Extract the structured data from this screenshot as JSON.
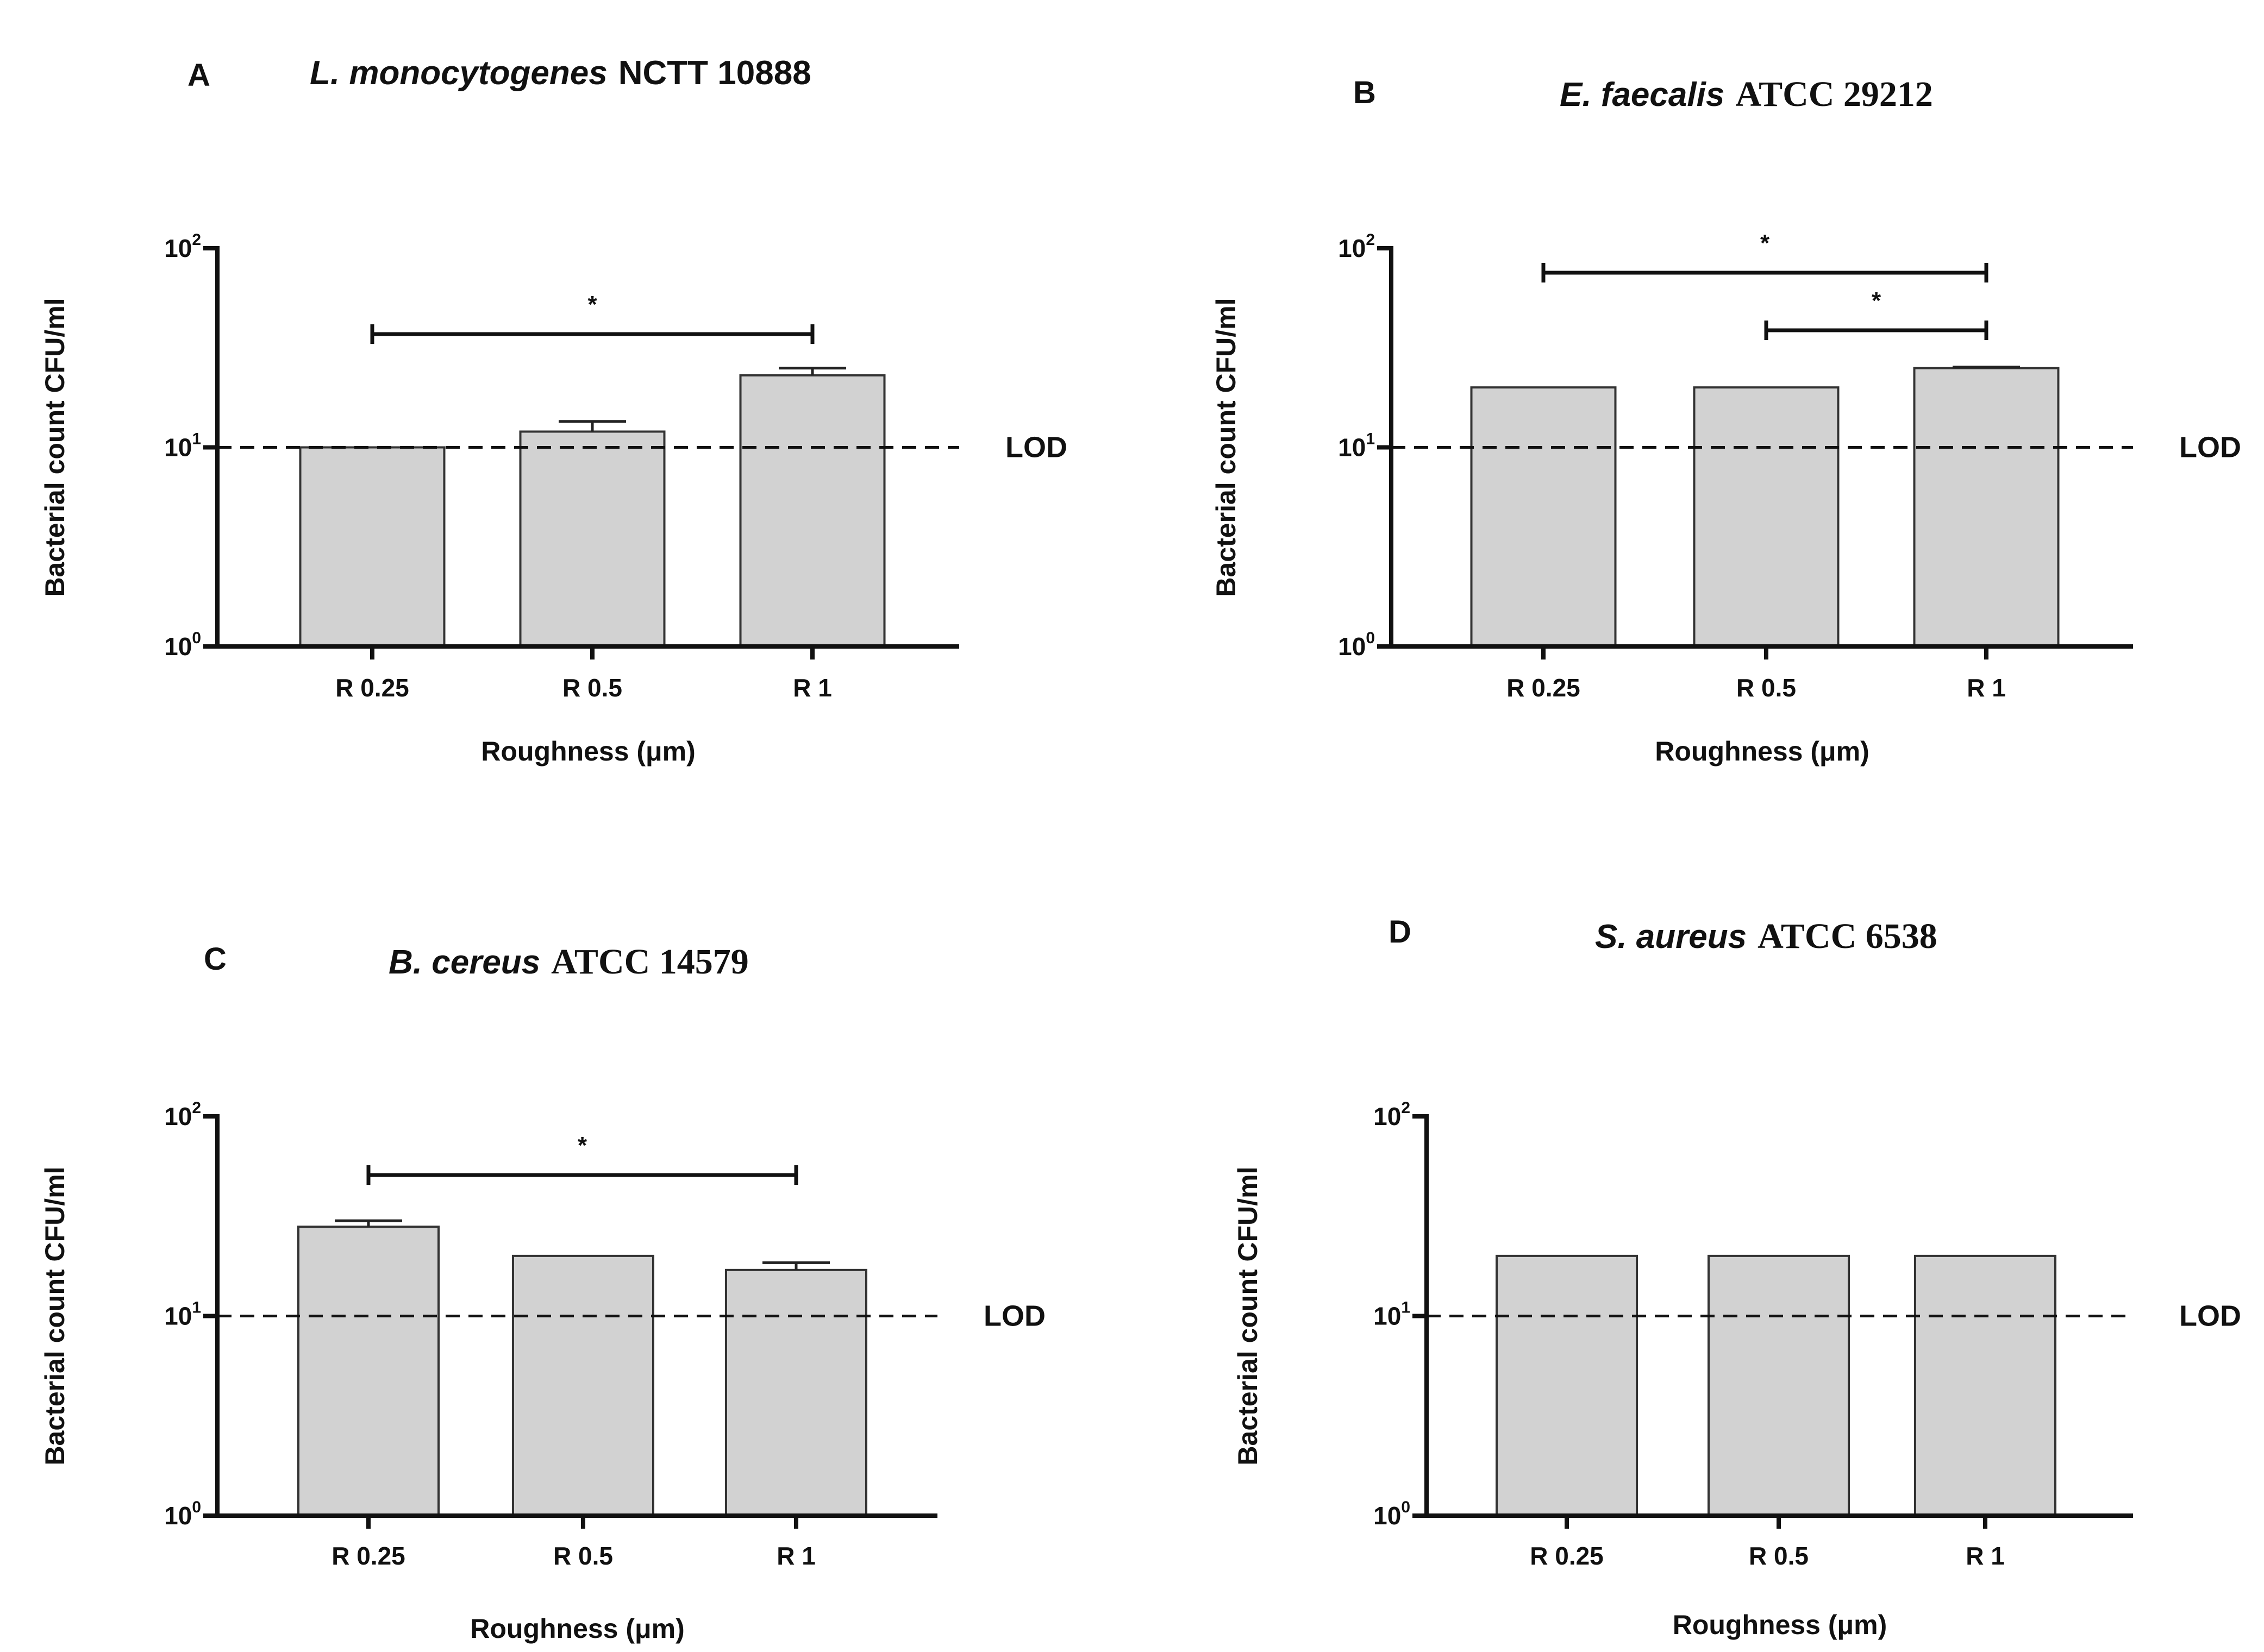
{
  "figure": {
    "y_axis_title": "Bacterial count CFU/ml",
    "x_axis_title": "Roughness (μm)",
    "lod_label": "LOD",
    "tick_base": "10",
    "significance_marker": "*",
    "bar_color": "#d2d2d2"
  },
  "chart_data": [
    {
      "type": "bar",
      "panel": "A",
      "title_italic": "L. monocytogenes",
      "title_rest": "NCTT 10888",
      "categories": [
        "R 0.25",
        "R 0.5",
        "R 1"
      ],
      "values": [
        10,
        12,
        23
      ],
      "errors": [
        0,
        1.5,
        2
      ],
      "yscale": "log",
      "ylim": [
        1,
        100
      ],
      "yticks": [
        {
          "base": "10",
          "exp": "0"
        },
        {
          "base": "10",
          "exp": "1"
        },
        {
          "base": "10",
          "exp": "2"
        }
      ],
      "lod": 10,
      "significance": [
        {
          "from": 0,
          "to": 2,
          "label": "*"
        }
      ]
    },
    {
      "type": "bar",
      "panel": "B",
      "title_italic": "E. faecalis",
      "title_rest": "ATCC 29212",
      "categories": [
        "R 0.25",
        "R 0.5",
        "R 1"
      ],
      "values": [
        20,
        20,
        25
      ],
      "errors": [
        0,
        0,
        0.3
      ],
      "yscale": "log",
      "ylim": [
        1,
        100
      ],
      "yticks": [
        {
          "base": "10",
          "exp": "0"
        },
        {
          "base": "10",
          "exp": "1"
        },
        {
          "base": "10",
          "exp": "2"
        }
      ],
      "lod": 10,
      "significance": [
        {
          "from": 0,
          "to": 2,
          "label": "*"
        },
        {
          "from": 1,
          "to": 2,
          "label": "*"
        }
      ]
    },
    {
      "type": "bar",
      "panel": "C",
      "title_italic": "B. cereus",
      "title_rest": "ATCC 14579",
      "categories": [
        "R 0.25",
        "R 0.5",
        "R 1"
      ],
      "values": [
        28,
        20,
        17
      ],
      "errors": [
        2,
        0,
        1.5
      ],
      "yscale": "log",
      "ylim": [
        1,
        100
      ],
      "yticks": [
        {
          "base": "10",
          "exp": "0"
        },
        {
          "base": "10",
          "exp": "1"
        },
        {
          "base": "10",
          "exp": "2"
        }
      ],
      "lod": 10,
      "significance": [
        {
          "from": 0,
          "to": 2,
          "label": "*"
        }
      ]
    },
    {
      "type": "bar",
      "panel": "D",
      "title_italic": "S. aureus",
      "title_rest": "ATCC 6538",
      "categories": [
        "R 0.25",
        "R 0.5",
        "R 1"
      ],
      "values": [
        20,
        20,
        20
      ],
      "errors": [
        0,
        0,
        0
      ],
      "yscale": "log",
      "ylim": [
        1,
        100
      ],
      "yticks": [
        {
          "base": "10",
          "exp": "0"
        },
        {
          "base": "10",
          "exp": "1"
        },
        {
          "base": "10",
          "exp": "2"
        }
      ],
      "lod": 10,
      "significance": []
    }
  ]
}
